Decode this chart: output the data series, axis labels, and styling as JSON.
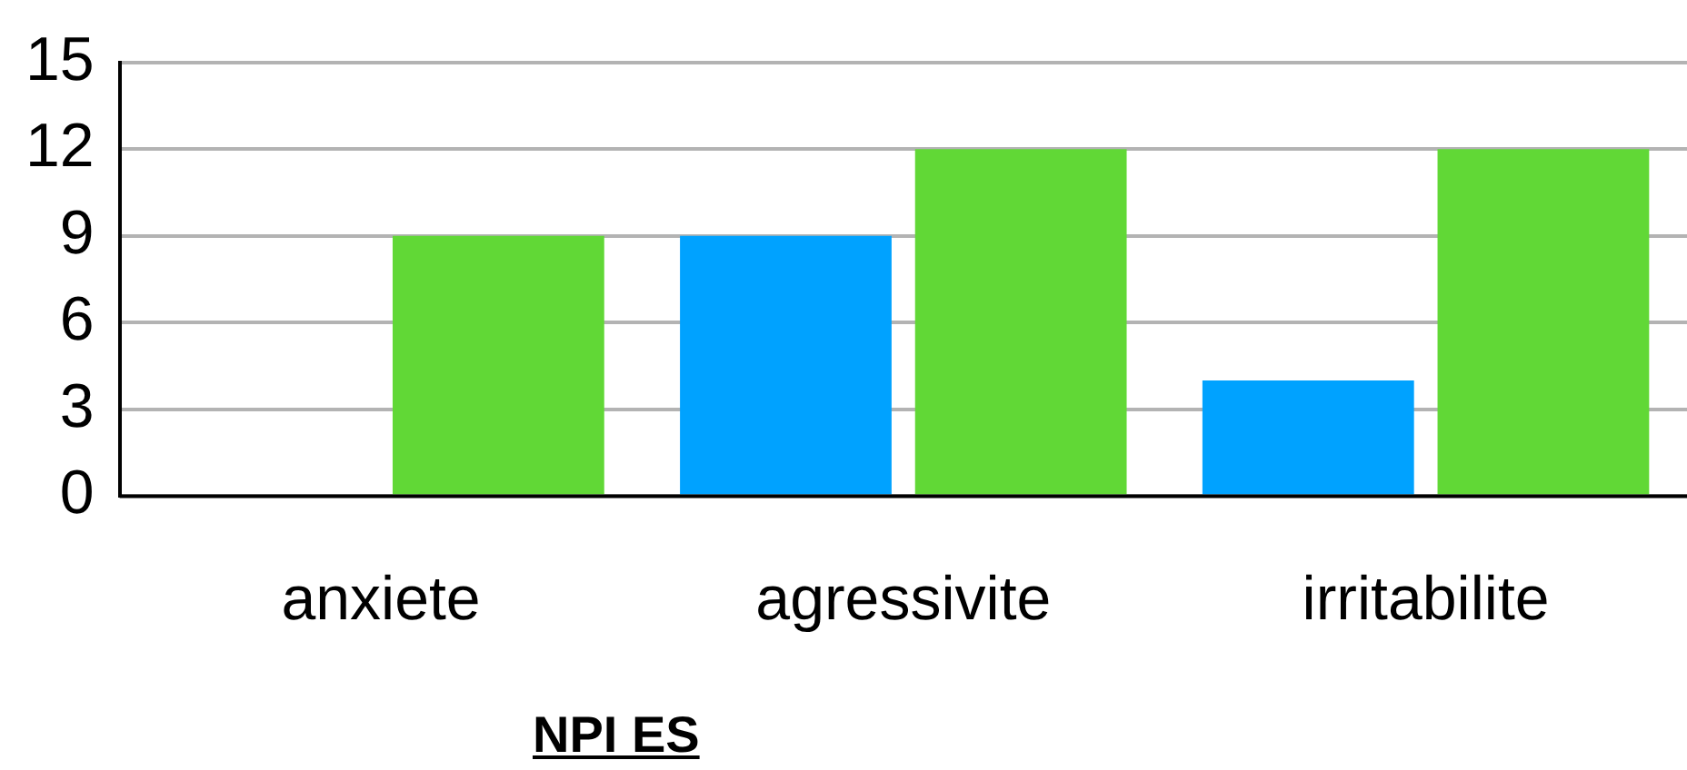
{
  "chart_data": {
    "type": "bar",
    "xlabel": "NPI ES",
    "categories": [
      "anxiete",
      "agressivite",
      "irritabilite"
    ],
    "series": [
      {
        "color": "#00a2ff",
        "values": [
          0,
          9,
          4
        ]
      },
      {
        "color": "#61d836",
        "values": [
          9,
          12,
          12
        ]
      }
    ],
    "ylim": [
      0,
      15
    ],
    "yticks": [
      0,
      3,
      6,
      9,
      12,
      15
    ],
    "grid": "y",
    "legend": false
  }
}
